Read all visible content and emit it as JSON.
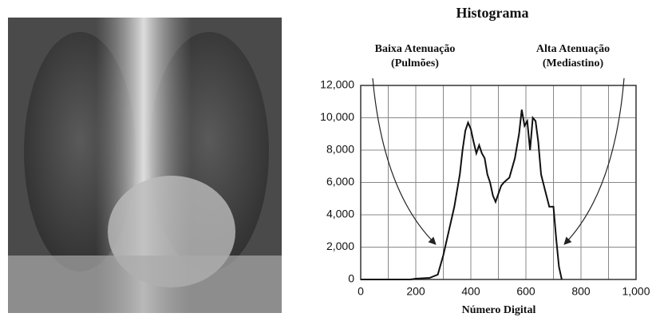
{
  "chart_data": {
    "type": "line",
    "title": "Histograma",
    "xlabel": "Número Digital",
    "annotations": [
      {
        "lines": [
          "Baixa Atenuação",
          "(Pulmões)"
        ]
      },
      {
        "lines": [
          "Alta Atenuação",
          "(Mediastino)"
        ]
      }
    ],
    "x": [
      0,
      100,
      180,
      200,
      250,
      280,
      300,
      320,
      340,
      360,
      370,
      380,
      390,
      400,
      410,
      420,
      430,
      440,
      450,
      460,
      470,
      480,
      490,
      500,
      510,
      520,
      540,
      560,
      575,
      585,
      595,
      605,
      615,
      625,
      635,
      645,
      655,
      670,
      685,
      700,
      710,
      720,
      730
    ],
    "values": [
      0,
      0,
      0,
      50,
      100,
      300,
      1500,
      3000,
      4500,
      6500,
      8000,
      9200,
      9700,
      9300,
      8500,
      7800,
      8300,
      7800,
      7500,
      6500,
      6000,
      5200,
      4800,
      5300,
      5800,
      6000,
      6300,
      7500,
      9000,
      10500,
      9500,
      9800,
      8000,
      10000,
      9800,
      8500,
      6500,
      5500,
      4500,
      4500,
      2500,
      800,
      0
    ],
    "color": "#111111",
    "xlim": [
      0,
      1000
    ],
    "ylim": [
      0,
      12000
    ],
    "xticks": [
      0,
      200,
      400,
      600,
      800,
      {
        "value": 1000,
        "label": "1,000"
      }
    ],
    "yticks": [
      0,
      {
        "value": 2000,
        "label": "2,000"
      },
      {
        "value": 4000,
        "label": "4,000"
      },
      {
        "value": 6000,
        "label": "6,000"
      },
      {
        "value": 8000,
        "label": "8,000"
      },
      {
        "value": 10000,
        "label": "10,000"
      },
      {
        "value": 12000,
        "label": "12,000"
      }
    ],
    "xgrid": [
      100,
      300,
      500,
      700,
      900
    ],
    "grid": true
  }
}
